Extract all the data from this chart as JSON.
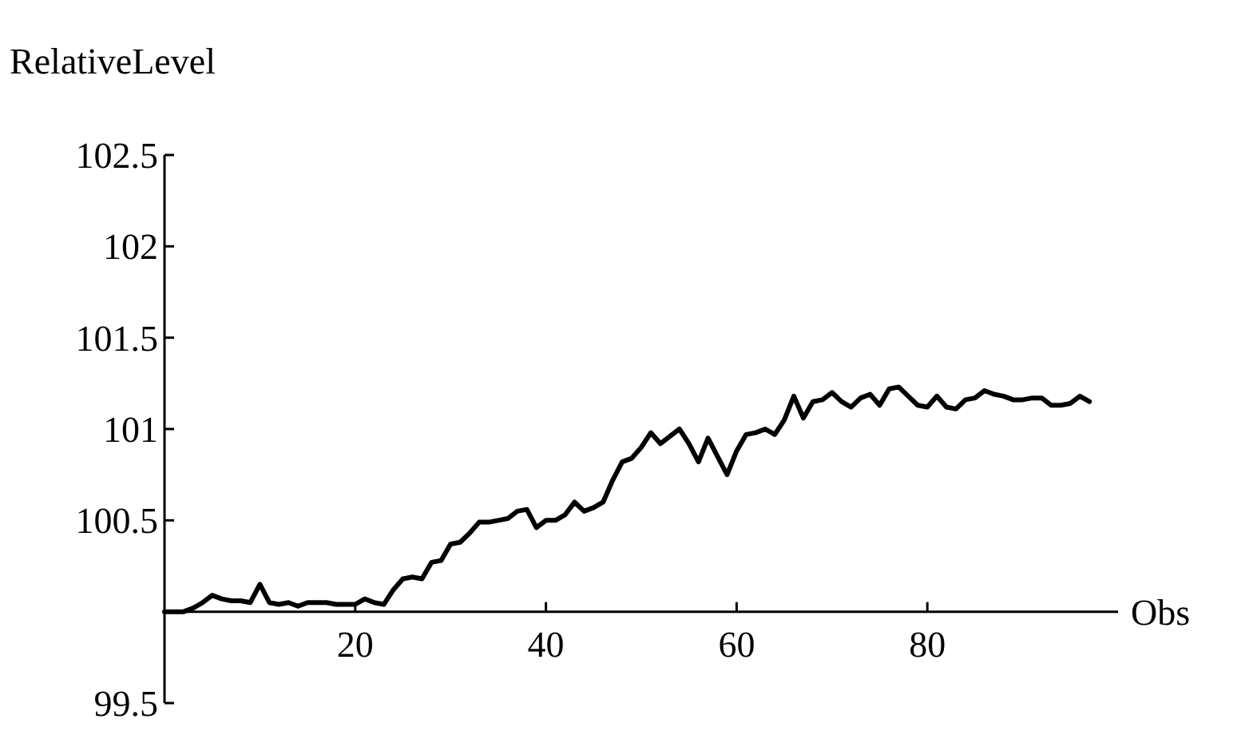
{
  "chart_data": {
    "type": "line",
    "ylabel": "RelativeLevel",
    "xlabel": "Obs",
    "xlim": [
      0,
      100
    ],
    "xticks": [
      20,
      40,
      60,
      80
    ],
    "ylim": [
      99.5,
      102.5
    ],
    "yticks": [
      99.5,
      {
        "value": 100,
        "label": null
      },
      100.5,
      101,
      101.5,
      102,
      102.5
    ],
    "line_style": "solid",
    "marker": "none",
    "grid": false,
    "series": [
      {
        "color": "#000000",
        "x": [
          0,
          1,
          2,
          3,
          4,
          5,
          6,
          7,
          8,
          9,
          10,
          11,
          12,
          13,
          14,
          15,
          16,
          17,
          18,
          19,
          20,
          21,
          22,
          23,
          24,
          25,
          26,
          27,
          28,
          29,
          30,
          31,
          32,
          33,
          34,
          35,
          36,
          37,
          38,
          39,
          40,
          41,
          42,
          43,
          44,
          45,
          46,
          47,
          48,
          49,
          50,
          51,
          52,
          53,
          54,
          55,
          56,
          57,
          58,
          59,
          60,
          61,
          62,
          63,
          64,
          65,
          66,
          67,
          68,
          69,
          70,
          71,
          72,
          73,
          74,
          75,
          76,
          77,
          78,
          79,
          80,
          81,
          82,
          83,
          84,
          85,
          86,
          87,
          88,
          89,
          90,
          91,
          92,
          93,
          94,
          95,
          96,
          97
        ],
        "values": [
          100,
          100,
          100,
          100.02,
          100.05,
          100.09,
          100.07,
          100.06,
          100.06,
          100.05,
          100.15,
          100.05,
          100.04,
          100.05,
          100.03,
          100.05,
          100.05,
          100.05,
          100.04,
          100.04,
          100.04,
          100.07,
          100.05,
          100.04,
          100.12,
          100.18,
          100.19,
          100.18,
          100.27,
          100.28,
          100.37,
          100.38,
          100.43,
          100.49,
          100.49,
          100.5,
          100.51,
          100.55,
          100.56,
          100.46,
          100.5,
          100.5,
          100.53,
          100.6,
          100.55,
          100.57,
          100.6,
          100.72,
          100.82,
          100.84,
          100.9,
          100.98,
          100.92,
          100.96,
          101,
          100.92,
          100.82,
          100.95,
          100.85,
          100.75,
          100.88,
          100.97,
          100.98,
          101,
          100.97,
          101.05,
          101.18,
          101.06,
          101.15,
          101.16,
          101.2,
          101.15,
          101.12,
          101.17,
          101.19,
          101.13,
          101.22,
          101.23,
          101.18,
          101.13,
          101.12,
          101.18,
          101.12,
          101.11,
          101.16,
          101.17,
          101.21,
          101.19,
          101.18,
          101.16,
          101.16,
          101.17,
          101.17,
          101.13,
          101.13,
          101.14,
          101.18,
          101.15
        ]
      }
    ]
  }
}
